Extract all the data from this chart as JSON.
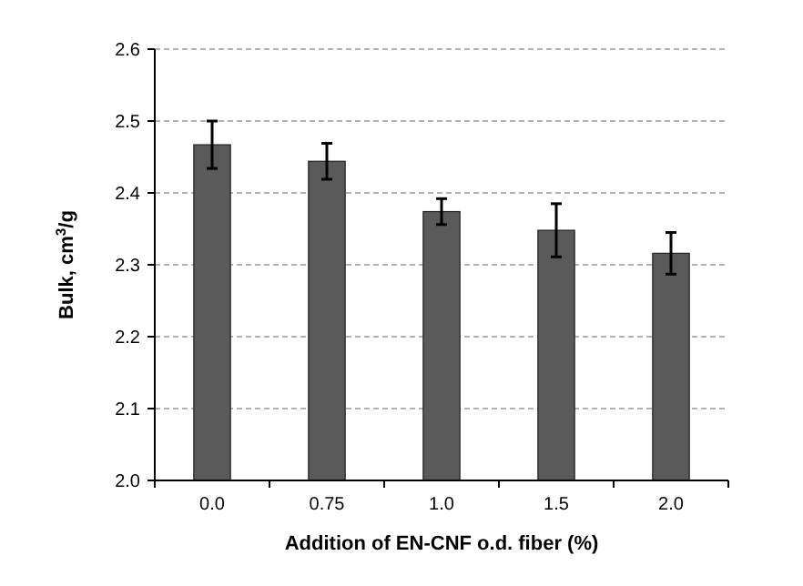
{
  "chart_data": {
    "type": "bar",
    "xlabel": "Addition of EN-CNF o.d. fiber (%)",
    "ylabel": "Bulk, cm$^{3}$/g",
    "categories": [
      "0.0",
      "0.75",
      "1.0",
      "1.5",
      "2.0"
    ],
    "values": [
      2.467,
      2.444,
      2.374,
      2.348,
      2.316
    ],
    "errors": [
      0.033,
      0.025,
      0.018,
      0.037,
      0.029
    ],
    "color": "#5a5a5a",
    "ylim": [
      2.0,
      2.6
    ],
    "yticks": [
      {
        "value": 2.0,
        "label": "2.0"
      },
      {
        "value": 2.1,
        "label": "2.1"
      },
      {
        "value": 2.2,
        "label": "2.2"
      },
      {
        "value": 2.3,
        "label": "2.3"
      },
      {
        "value": 2.4,
        "label": "2.4"
      },
      {
        "value": 2.5,
        "label": "2.5"
      },
      {
        "value": 2.6,
        "label": "2.6"
      }
    ],
    "grid": "y"
  }
}
